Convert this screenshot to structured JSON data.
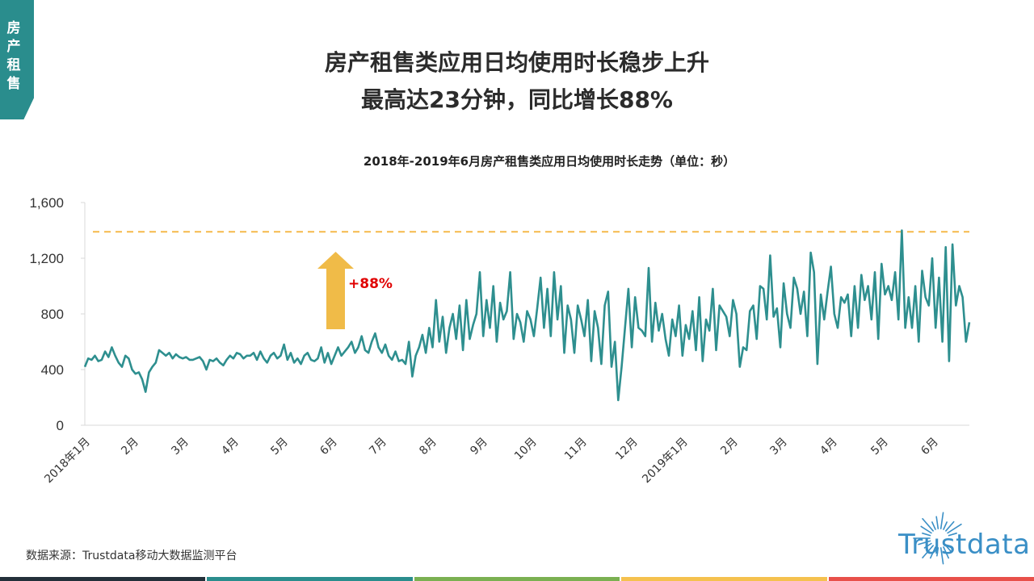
{
  "side_tab": {
    "label": "房\n产\n租\n售"
  },
  "header": {
    "title_line1": "房产租售类应用日均使用时长稳步上升",
    "title_line2": "最高达23分钟，同比增长88%"
  },
  "footer": {
    "source": "数据来源：Trustdata移动大数据监测平台",
    "logo_text": "Trustdata",
    "bar_colors": [
      "#23303a",
      "#2a8d8d",
      "#7ab051",
      "#f5c14e",
      "#e8504a"
    ]
  },
  "annotation": {
    "label": "+88%",
    "color": "#e00000",
    "arrow_color": "#f0bb48"
  },
  "colors": {
    "line": "#2e8f8f",
    "reference": "#f5b94a",
    "axis": "#d9d9d9",
    "tab": "#2a8d8d"
  },
  "chart_data": {
    "type": "line",
    "title": "2018年-2019年6月房产租售类应用日均使用时长走势（单位：秒）",
    "xlabel": "",
    "ylabel": "",
    "ylim": [
      0,
      1600
    ],
    "yticks": [
      "0",
      "400",
      "800",
      "1,200",
      "1,600"
    ],
    "grid": false,
    "legend": null,
    "x_tick_labels": [
      "2018年1月",
      "2月",
      "3月",
      "4月",
      "5月",
      "6月",
      "7月",
      "8月",
      "9月",
      "10月",
      "11月",
      "12月",
      "2019年1月",
      "2月",
      "3月",
      "4月",
      "5月",
      "6月"
    ],
    "reference_line": {
      "value": 1390,
      "style": "dashed",
      "color": "#f5b94a"
    },
    "annotations": [
      {
        "text": "+88%",
        "type": "up-arrow"
      }
    ],
    "series": [
      {
        "name": "日均使用时长（秒）",
        "frequency": "approx. every 3 days (sampled from daily series)",
        "values": [
          420,
          480,
          470,
          500,
          460,
          470,
          530,
          490,
          560,
          500,
          450,
          420,
          500,
          480,
          400,
          370,
          380,
          330,
          240,
          380,
          420,
          450,
          540,
          520,
          500,
          520,
          480,
          510,
          490,
          480,
          490,
          470,
          470,
          480,
          490,
          460,
          400,
          470,
          460,
          480,
          450,
          430,
          470,
          500,
          480,
          520,
          510,
          480,
          500,
          500,
          520,
          470,
          530,
          480,
          450,
          500,
          520,
          480,
          500,
          580,
          470,
          520,
          450,
          480,
          440,
          500,
          520,
          470,
          460,
          480,
          560,
          450,
          520,
          440,
          500,
          560,
          500,
          530,
          560,
          600,
          520,
          560,
          640,
          540,
          520,
          600,
          660,
          560,
          520,
          580,
          500,
          470,
          530,
          460,
          470,
          440,
          600,
          350,
          500,
          560,
          650,
          520,
          700,
          560,
          900,
          600,
          780,
          520,
          700,
          800,
          620,
          860,
          540,
          900,
          620,
          720,
          800,
          1100,
          640,
          900,
          700,
          1000,
          600,
          880,
          760,
          820,
          1100,
          620,
          800,
          740,
          600,
          820,
          760,
          640,
          840,
          1060,
          700,
          980,
          640,
          1100,
          760,
          1000,
          520,
          860,
          760,
          520,
          860,
          760,
          640,
          900,
          460,
          820,
          700,
          440,
          860,
          960,
          420,
          600,
          180,
          420,
          700,
          980,
          560,
          920,
          700,
          680,
          640,
          1130,
          600,
          880,
          680,
          800,
          620,
          500,
          760,
          640,
          860,
          500,
          720,
          620,
          820,
          540,
          920,
          460,
          760,
          680,
          980,
          540,
          860,
          820,
          780,
          640,
          900,
          800,
          420,
          560,
          540,
          820,
          860,
          620,
          1000,
          980,
          760,
          1220,
          780,
          840,
          560,
          1020,
          800,
          700,
          1060,
          980,
          800,
          960,
          640,
          1240,
          1100,
          440,
          940,
          760,
          960,
          1140,
          800,
          700,
          920,
          880,
          940,
          640,
          1000,
          700,
          1080,
          900,
          1000,
          760,
          1100,
          620,
          1160,
          940,
          1000,
          900,
          1100,
          760,
          1400,
          700,
          920,
          700,
          1000,
          600,
          1110,
          920,
          860,
          1200,
          700,
          1060,
          600,
          1280,
          460,
          1300,
          860,
          1000,
          920,
          600,
          740
        ]
      }
    ]
  }
}
